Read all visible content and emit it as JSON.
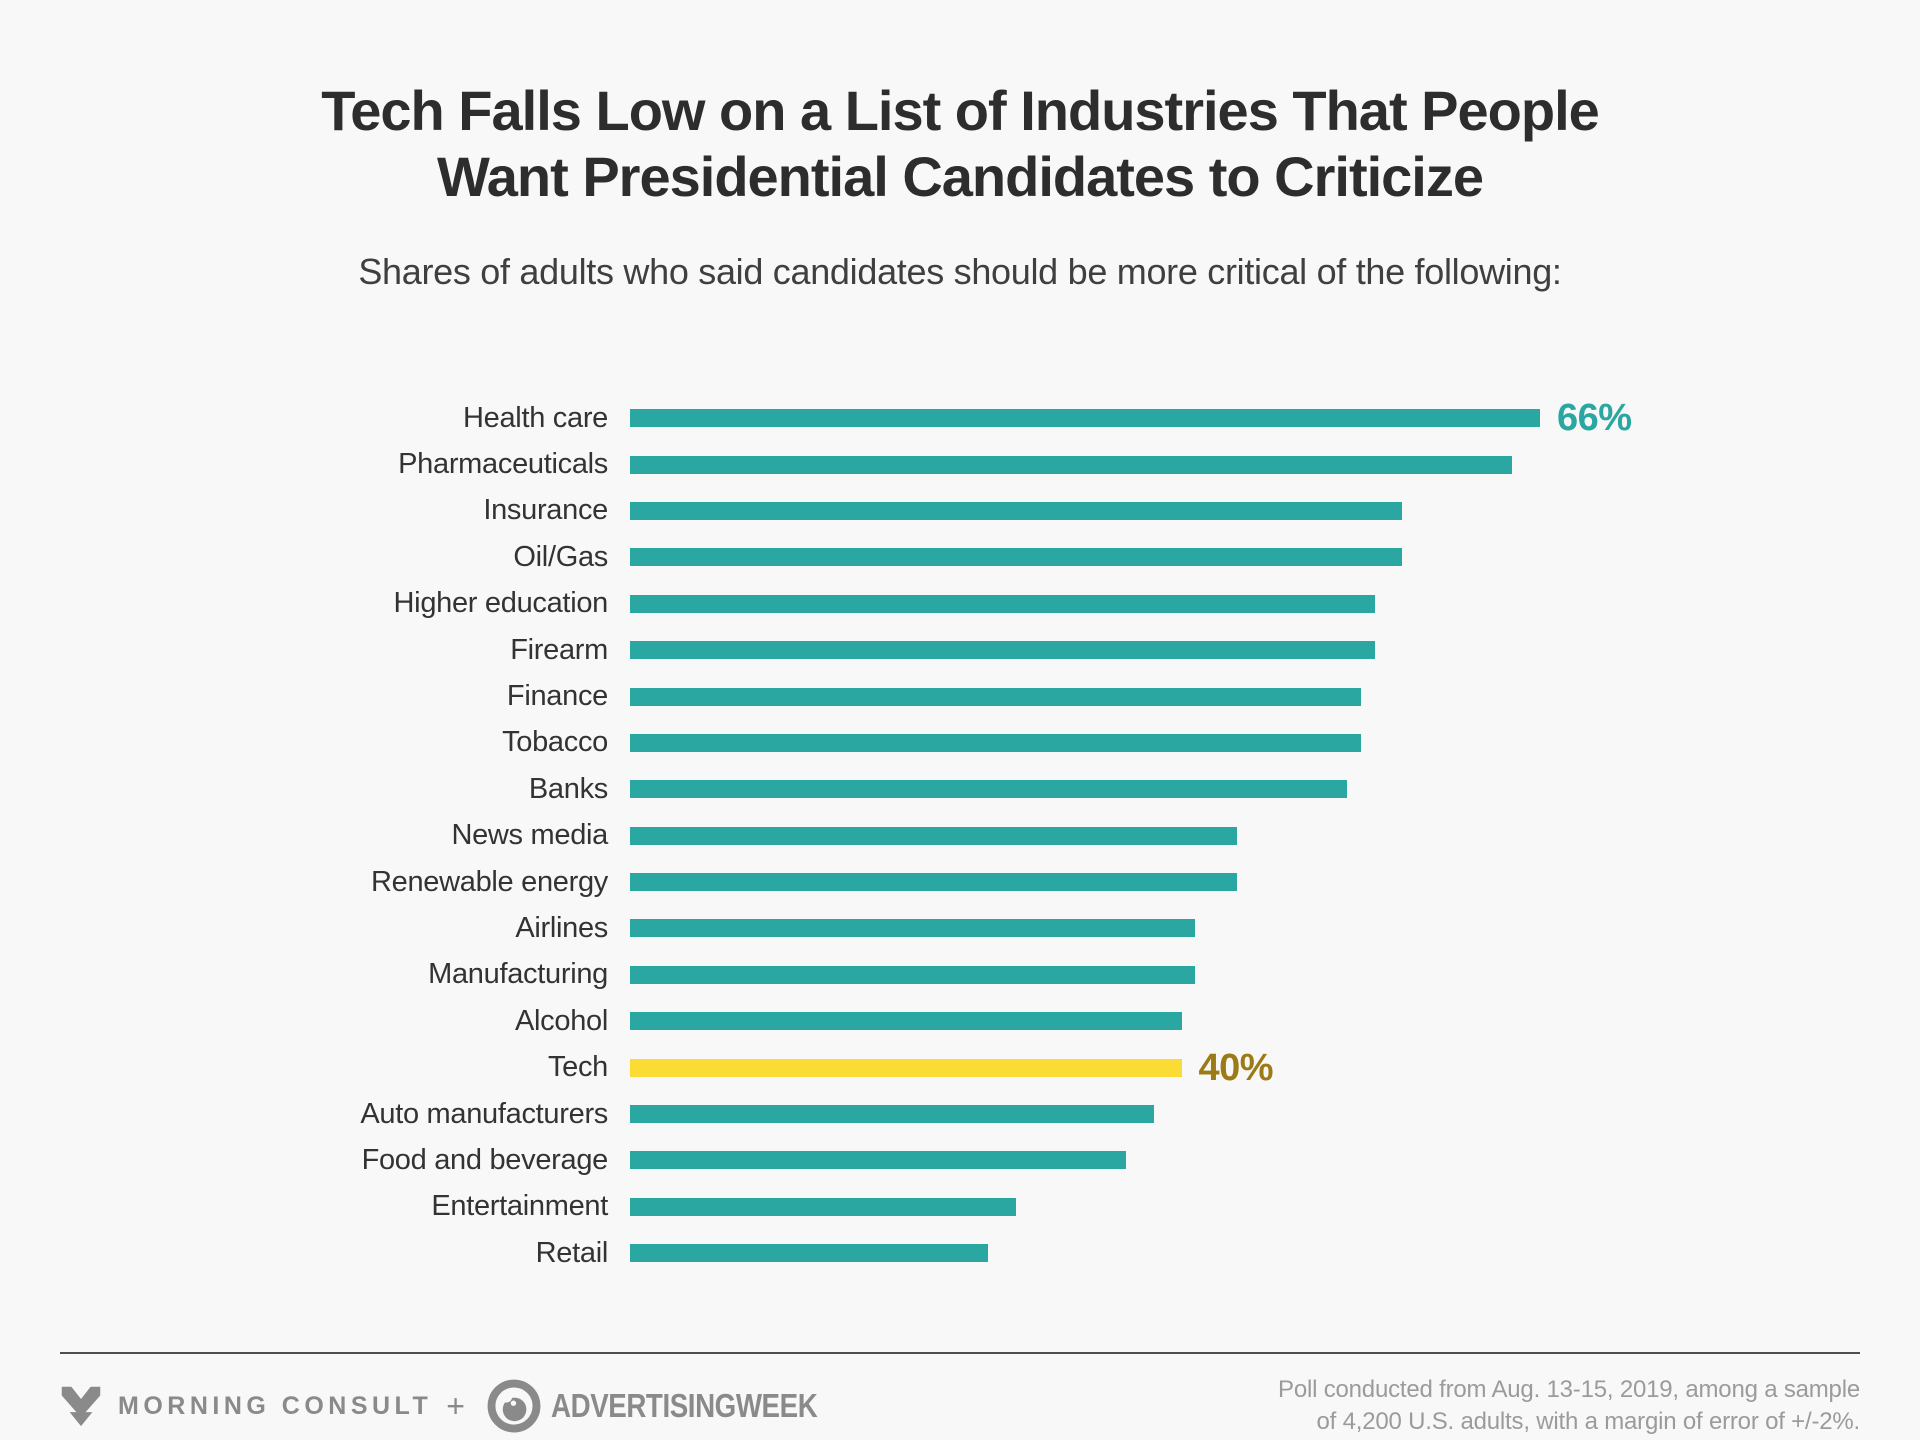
{
  "page": {
    "background_color": "#f8f8f8"
  },
  "header": {
    "title_line1": "Tech Falls Low on a List of Industries That People",
    "title_line2": "Want Presidential Candidates to Criticize",
    "subtitle": "Shares of adults who said candidates should be more critical of the following:"
  },
  "chart_data": {
    "type": "bar",
    "orientation": "horizontal",
    "unit": "%",
    "xlim": [
      0,
      66
    ],
    "grid": false,
    "legend": false,
    "bar_color": "#2ba7a2",
    "highlight_color": "#fbdc34",
    "value_label_colors": {
      "teal": "#2ba7a2",
      "gold": "#9c7b16"
    },
    "categories": [
      "Health care",
      "Pharmaceuticals",
      "Insurance",
      "Oil/Gas",
      "Higher education",
      "Firearm",
      "Finance",
      "Tobacco",
      "Banks",
      "News media",
      "Renewable energy",
      "Airlines",
      "Manufacturing",
      "Alcohol",
      "Tech",
      "Auto manufacturers",
      "Food and beverage",
      "Entertainment",
      "Retail"
    ],
    "values": [
      66,
      64,
      56,
      56,
      54,
      54,
      53,
      53,
      52,
      44,
      44,
      41,
      41,
      40,
      40,
      38,
      36,
      28,
      26
    ],
    "highlighted_category": "Tech",
    "value_labels": [
      {
        "category": "Health care",
        "text": "66%"
      },
      {
        "category": "Tech",
        "text": "40%"
      }
    ]
  },
  "footer": {
    "brand1": "MORNING CONSULT",
    "separator": "+",
    "brand2": "ADVERTISINGWEEK",
    "note_line1": "Poll conducted from Aug. 13-15, 2019, among a sample",
    "note_line2": "of 4,200 U.S. adults, with a margin of error of +/-2%."
  }
}
